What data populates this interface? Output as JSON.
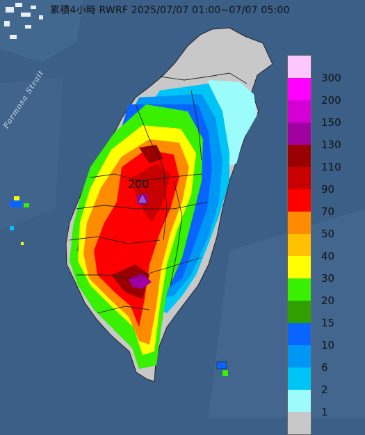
{
  "title": "累積4小時 RWRF 2025/07/07 01:00~07/07 05:00",
  "strait_label": "Formosa Strait",
  "max_value_label": "200",
  "legend": {
    "colors": [
      "#ffc6ff",
      "#ff00ff",
      "#d500d5",
      "#a000a0",
      "#9b0000",
      "#c80000",
      "#ff0000",
      "#ff8c00",
      "#ffc000",
      "#ffff00",
      "#38f000",
      "#30a000",
      "#0a64ff",
      "#0096f5",
      "#00c4f5",
      "#9cfcfc",
      "#c8c8c8"
    ],
    "labels": [
      "300",
      "200",
      "150",
      "130",
      "110",
      "90",
      "70",
      "50",
      "40",
      "30",
      "20",
      "15",
      "10",
      "6",
      "2",
      "1"
    ],
    "label_colors": [
      "#c0c0c0"
    ]
  },
  "map_colors": {
    "sea": "#3b5f86",
    "land_no_rain": "#c8c8c8",
    "county_border": "#222222",
    "max_marker": "#a050e0"
  }
}
